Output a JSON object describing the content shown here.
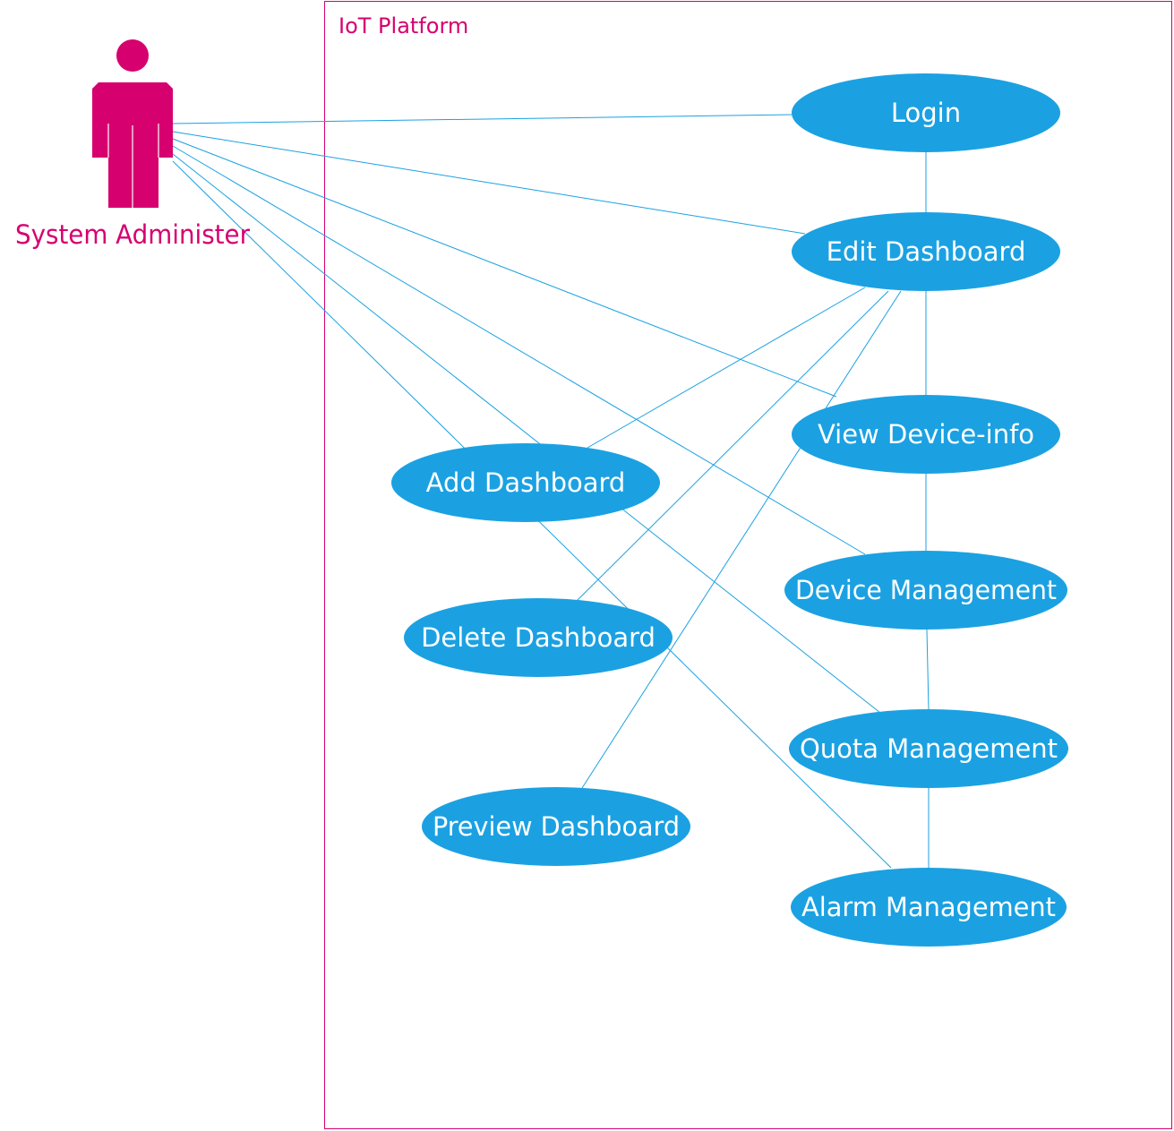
{
  "colors": {
    "accent": "#d6006f",
    "usecase_fill": "#1ba1e2",
    "line": "#1ba1e2",
    "usecase_text": "#ffffff"
  },
  "system": {
    "title": "IoT Platform"
  },
  "actor": {
    "label": "System Administer",
    "icon": "person-icon"
  },
  "use_cases": [
    {
      "id": "login",
      "label": "Login"
    },
    {
      "id": "edit-dashboard",
      "label": "Edit Dashboard"
    },
    {
      "id": "view-device-info",
      "label": "View Device-info"
    },
    {
      "id": "add-dashboard",
      "label": "Add Dashboard"
    },
    {
      "id": "device-management",
      "label": "Device Management"
    },
    {
      "id": "delete-dashboard",
      "label": "Delete Dashboard"
    },
    {
      "id": "quota-management",
      "label": "Quota Management"
    },
    {
      "id": "preview-dashboard",
      "label": "Preview Dashboard"
    },
    {
      "id": "alarm-management",
      "label": "Alarm Management"
    }
  ],
  "associations": [
    {
      "from": "actor",
      "to": "login"
    },
    {
      "from": "actor",
      "to": "edit-dashboard"
    },
    {
      "from": "actor",
      "to": "view-device-info"
    },
    {
      "from": "actor",
      "to": "device-management"
    },
    {
      "from": "actor",
      "to": "quota-management"
    },
    {
      "from": "actor",
      "to": "alarm-management"
    },
    {
      "from": "login",
      "to": "edit-dashboard"
    },
    {
      "from": "edit-dashboard",
      "to": "view-device-info"
    },
    {
      "from": "edit-dashboard",
      "to": "add-dashboard"
    },
    {
      "from": "edit-dashboard",
      "to": "delete-dashboard"
    },
    {
      "from": "edit-dashboard",
      "to": "preview-dashboard"
    },
    {
      "from": "view-device-info",
      "to": "device-management"
    },
    {
      "from": "device-management",
      "to": "quota-management"
    },
    {
      "from": "quota-management",
      "to": "alarm-management"
    }
  ]
}
